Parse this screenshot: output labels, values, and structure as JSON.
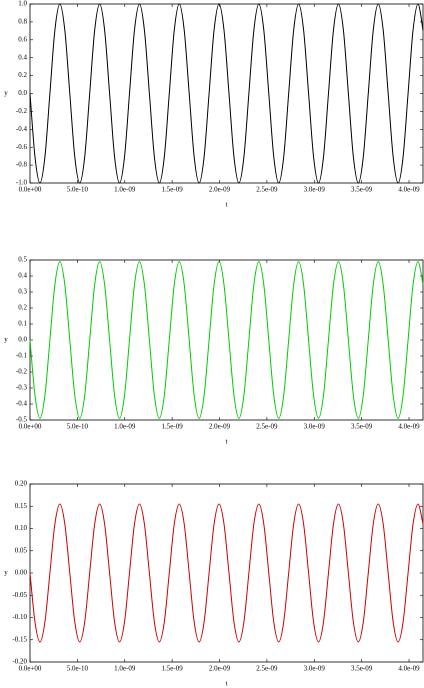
{
  "chart_data": [
    {
      "type": "line",
      "x_label": "t",
      "y_label": "y",
      "x": [
        0,
        5.25e-11,
        1.05e-10,
        1.575e-10,
        2.1e-10,
        2.625e-10,
        3.15e-10,
        3.675e-10,
        4.2e-10,
        4.725e-10,
        5.25e-10,
        5.775e-10,
        6.3e-10,
        6.825e-10,
        7.35e-10,
        7.875e-10,
        8.4e-10,
        8.925e-10,
        9.45e-10,
        9.975e-10,
        1.05e-09,
        1.1025e-09,
        1.155e-09,
        1.2075e-09,
        1.26e-09,
        1.3125e-09,
        1.365e-09,
        1.4175e-09,
        1.47e-09,
        1.5225e-09,
        1.575e-09,
        1.6275e-09,
        1.68e-09,
        1.7325e-09,
        1.785e-09,
        1.8375e-09,
        1.89e-09,
        1.9425e-09,
        1.995e-09,
        2.0475e-09,
        2.1e-09,
        2.1525e-09,
        2.205e-09,
        2.2575e-09,
        2.31e-09,
        2.3625e-09,
        2.415e-09,
        2.4675e-09,
        2.52e-09,
        2.5725e-09,
        2.625e-09,
        2.6775e-09,
        2.73e-09,
        2.7825e-09,
        2.835e-09,
        2.8875e-09,
        2.94e-09,
        2.9925e-09,
        3.045e-09,
        3.0975e-09,
        3.15e-09,
        3.2025e-09,
        3.255e-09,
        3.3075e-09,
        3.36e-09,
        3.4125e-09,
        3.465e-09,
        3.5175e-09,
        3.57e-09,
        3.6225e-09,
        3.675e-09,
        3.7275e-09,
        3.78e-09,
        3.8325e-09,
        3.885e-09,
        3.9375e-09,
        3.99e-09,
        4.0425e-09,
        4.095e-09,
        4.1475e-09
      ],
      "series": [
        {
          "color": "#000000",
          "values": [
            0,
            -0.707,
            -1,
            -0.707,
            0,
            0.707,
            1,
            0.707,
            0,
            -0.707,
            -1,
            -0.707,
            0,
            0.707,
            1,
            0.707,
            0,
            -0.707,
            -1,
            -0.707,
            0,
            0.707,
            1,
            0.707,
            0,
            -0.707,
            -1,
            -0.707,
            0,
            0.707,
            1,
            0.707,
            0,
            -0.707,
            -1,
            -0.707,
            0,
            0.707,
            1,
            0.707,
            0,
            -0.707,
            -1,
            -0.707,
            0,
            0.707,
            1,
            0.707,
            0,
            -0.707,
            -1,
            -0.707,
            0,
            0.707,
            1,
            0.707,
            0,
            -0.707,
            -1,
            -0.707,
            0,
            0.707,
            1,
            0.707,
            0,
            -0.707,
            -1,
            -0.707,
            0,
            0.707,
            1,
            0.707,
            0,
            -0.707,
            -1,
            -0.707,
            0,
            0.707,
            1,
            0.707
          ]
        }
      ],
      "xlim": [
        0,
        4.1475e-09
      ],
      "xticks": [
        {
          "value": 0,
          "label": "0.0e+00"
        },
        {
          "value": 5e-10,
          "label": "5.0e-10"
        },
        {
          "value": 1e-09,
          "label": "1.0e-09"
        },
        {
          "value": 1.5e-09,
          "label": "1.5e-09"
        },
        {
          "value": 2e-09,
          "label": "2.0e-09"
        },
        {
          "value": 2.5e-09,
          "label": "2.5e-09"
        },
        {
          "value": 3e-09,
          "label": "3.0e-09"
        },
        {
          "value": 3.5e-09,
          "label": "3.5e-09"
        },
        {
          "value": 4e-09,
          "label": "4.0e-09"
        }
      ],
      "ylim": [
        -1,
        1
      ],
      "yticks": [
        {
          "value": -1,
          "label": "-1.0"
        },
        -0.8,
        -0.6,
        -0.4,
        -0.2,
        {
          "value": 0,
          "label": "0.0"
        },
        0.2,
        0.4,
        0.6,
        0.8,
        {
          "value": 1,
          "label": "1.0"
        }
      ]
    },
    {
      "type": "line",
      "x_label": "t",
      "y_label": "y",
      "x": [
        0,
        5.25e-11,
        1.05e-10,
        1.575e-10,
        2.1e-10,
        2.625e-10,
        3.15e-10,
        3.675e-10,
        4.2e-10,
        4.725e-10,
        5.25e-10,
        5.775e-10,
        6.3e-10,
        6.825e-10,
        7.35e-10,
        7.875e-10,
        8.4e-10,
        8.925e-10,
        9.45e-10,
        9.975e-10,
        1.05e-09,
        1.1025e-09,
        1.155e-09,
        1.2075e-09,
        1.26e-09,
        1.3125e-09,
        1.365e-09,
        1.4175e-09,
        1.47e-09,
        1.5225e-09,
        1.575e-09,
        1.6275e-09,
        1.68e-09,
        1.7325e-09,
        1.785e-09,
        1.8375e-09,
        1.89e-09,
        1.9425e-09,
        1.995e-09,
        2.0475e-09,
        2.1e-09,
        2.1525e-09,
        2.205e-09,
        2.2575e-09,
        2.31e-09,
        2.3625e-09,
        2.415e-09,
        2.4675e-09,
        2.52e-09,
        2.5725e-09,
        2.625e-09,
        2.6775e-09,
        2.73e-09,
        2.7825e-09,
        2.835e-09,
        2.8875e-09,
        2.94e-09,
        2.9925e-09,
        3.045e-09,
        3.0975e-09,
        3.15e-09,
        3.2025e-09,
        3.255e-09,
        3.3075e-09,
        3.36e-09,
        3.4125e-09,
        3.465e-09,
        3.5175e-09,
        3.57e-09,
        3.6225e-09,
        3.675e-09,
        3.7275e-09,
        3.78e-09,
        3.8325e-09,
        3.885e-09,
        3.9375e-09,
        3.99e-09,
        4.0425e-09,
        4.095e-09,
        4.1475e-09
      ],
      "series": [
        {
          "color": "#00cc00",
          "values": [
            0,
            -0.346,
            -0.49,
            -0.346,
            0,
            0.346,
            0.49,
            0.346,
            0,
            -0.346,
            -0.49,
            -0.346,
            0,
            0.346,
            0.49,
            0.346,
            0,
            -0.346,
            -0.49,
            -0.346,
            0,
            0.346,
            0.49,
            0.346,
            0,
            -0.346,
            -0.49,
            -0.346,
            0,
            0.346,
            0.49,
            0.346,
            0,
            -0.346,
            -0.49,
            -0.346,
            0,
            0.346,
            0.49,
            0.346,
            0,
            -0.346,
            -0.49,
            -0.346,
            0,
            0.346,
            0.49,
            0.346,
            0,
            -0.346,
            -0.49,
            -0.346,
            0,
            0.346,
            0.49,
            0.346,
            0,
            -0.346,
            -0.49,
            -0.346,
            0,
            0.346,
            0.49,
            0.346,
            0,
            -0.346,
            -0.49,
            -0.346,
            0,
            0.346,
            0.49,
            0.346,
            0,
            -0.346,
            -0.49,
            -0.346,
            0,
            0.346,
            0.49,
            0.346
          ]
        }
      ],
      "xlim": [
        0,
        4.1475e-09
      ],
      "xticks": [
        {
          "value": 0,
          "label": "0.0e+00"
        },
        {
          "value": 5e-10,
          "label": "5.0e-10"
        },
        {
          "value": 1e-09,
          "label": "1.0e-09"
        },
        {
          "value": 1.5e-09,
          "label": "1.5e-09"
        },
        {
          "value": 2e-09,
          "label": "2.0e-09"
        },
        {
          "value": 2.5e-09,
          "label": "2.5e-09"
        },
        {
          "value": 3e-09,
          "label": "3.0e-09"
        },
        {
          "value": 3.5e-09,
          "label": "3.5e-09"
        },
        {
          "value": 4e-09,
          "label": "4.0e-09"
        }
      ],
      "ylim": [
        -0.5,
        0.5
      ],
      "yticks": [
        -0.5,
        -0.4,
        -0.3,
        -0.2,
        -0.1,
        {
          "value": 0,
          "label": "0.0"
        },
        0.1,
        0.2,
        0.3,
        0.4,
        0.5
      ]
    },
    {
      "type": "line",
      "x_label": "t",
      "y_label": "y",
      "x": [
        0,
        5.25e-11,
        1.05e-10,
        1.575e-10,
        2.1e-10,
        2.625e-10,
        3.15e-10,
        3.675e-10,
        4.2e-10,
        4.725e-10,
        5.25e-10,
        5.775e-10,
        6.3e-10,
        6.825e-10,
        7.35e-10,
        7.875e-10,
        8.4e-10,
        8.925e-10,
        9.45e-10,
        9.975e-10,
        1.05e-09,
        1.1025e-09,
        1.155e-09,
        1.2075e-09,
        1.26e-09,
        1.3125e-09,
        1.365e-09,
        1.4175e-09,
        1.47e-09,
        1.5225e-09,
        1.575e-09,
        1.6275e-09,
        1.68e-09,
        1.7325e-09,
        1.785e-09,
        1.8375e-09,
        1.89e-09,
        1.9425e-09,
        1.995e-09,
        2.0475e-09,
        2.1e-09,
        2.1525e-09,
        2.205e-09,
        2.2575e-09,
        2.31e-09,
        2.3625e-09,
        2.415e-09,
        2.4675e-09,
        2.52e-09,
        2.5725e-09,
        2.625e-09,
        2.6775e-09,
        2.73e-09,
        2.7825e-09,
        2.835e-09,
        2.8875e-09,
        2.94e-09,
        2.9925e-09,
        3.045e-09,
        3.0975e-09,
        3.15e-09,
        3.2025e-09,
        3.255e-09,
        3.3075e-09,
        3.36e-09,
        3.4125e-09,
        3.465e-09,
        3.5175e-09,
        3.57e-09,
        3.6225e-09,
        3.675e-09,
        3.7275e-09,
        3.78e-09,
        3.8325e-09,
        3.885e-09,
        3.9375e-09,
        3.99e-09,
        4.0425e-09,
        4.095e-09,
        4.1475e-09
      ],
      "series": [
        {
          "color": "#cc0000",
          "values": [
            0,
            -0.11,
            -0.155,
            -0.11,
            0,
            0.11,
            0.155,
            0.11,
            0,
            -0.11,
            -0.155,
            -0.11,
            0,
            0.11,
            0.155,
            0.11,
            0,
            -0.11,
            -0.155,
            -0.11,
            0,
            0.11,
            0.155,
            0.11,
            0,
            -0.11,
            -0.155,
            -0.11,
            0,
            0.11,
            0.155,
            0.11,
            0,
            -0.11,
            -0.155,
            -0.11,
            0,
            0.11,
            0.155,
            0.11,
            0,
            -0.11,
            -0.155,
            -0.11,
            0,
            0.11,
            0.155,
            0.11,
            0,
            -0.11,
            -0.155,
            -0.11,
            0,
            0.11,
            0.155,
            0.11,
            0,
            -0.11,
            -0.155,
            -0.11,
            0,
            0.11,
            0.155,
            0.11,
            0,
            -0.11,
            -0.155,
            -0.11,
            0,
            0.11,
            0.155,
            0.11,
            0,
            -0.11,
            -0.155,
            -0.11,
            0,
            0.11,
            0.155,
            0.11
          ]
        }
      ],
      "xlim": [
        0,
        4.1475e-09
      ],
      "xticks": [
        {
          "value": 0,
          "label": "0.0e+00"
        },
        {
          "value": 5e-10,
          "label": "5.0e-10"
        },
        {
          "value": 1e-09,
          "label": "1.0e-09"
        },
        {
          "value": 1.5e-09,
          "label": "1.5e-09"
        },
        {
          "value": 2e-09,
          "label": "2.0e-09"
        },
        {
          "value": 2.5e-09,
          "label": "2.5e-09"
        },
        {
          "value": 3e-09,
          "label": "3.0e-09"
        },
        {
          "value": 3.5e-09,
          "label": "3.5e-09"
        },
        {
          "value": 4e-09,
          "label": "4.0e-09"
        }
      ],
      "ylim": [
        -0.2,
        0.2
      ],
      "yticks": [
        {
          "value": -0.2,
          "label": "-0.20"
        },
        -0.15,
        {
          "value": -0.1,
          "label": "-0.10"
        },
        -0.05,
        {
          "value": 0,
          "label": "0.00"
        },
        0.05,
        {
          "value": 0.1,
          "label": "0.10"
        },
        0.15,
        {
          "value": 0.2,
          "label": "0.20"
        }
      ]
    }
  ]
}
